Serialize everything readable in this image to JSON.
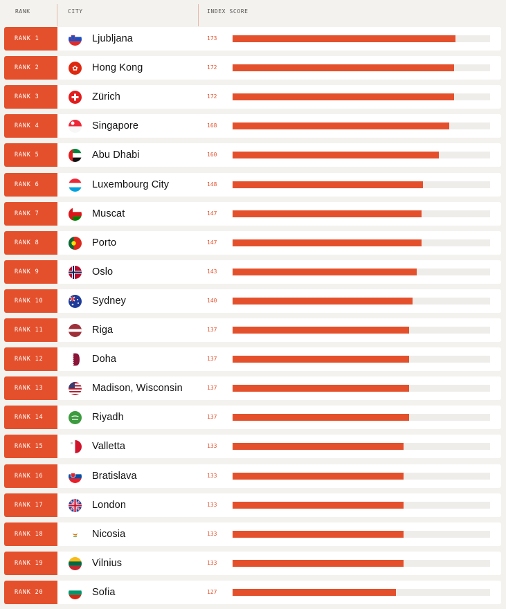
{
  "header": {
    "rank": "RANK",
    "city": "CITY",
    "score": "INDEX SCORE"
  },
  "colors": {
    "accent": "#e4502c",
    "track": "#efedea",
    "background": "#f4f2ee"
  },
  "chart_data": {
    "type": "bar",
    "title": "",
    "xlabel": "INDEX SCORE",
    "xlim": [
      0,
      200
    ],
    "categories": [
      "Ljubljana",
      "Hong Kong",
      "Zürich",
      "Singapore",
      "Abu Dhabi",
      "Luxembourg City",
      "Muscat",
      "Porto",
      "Oslo",
      "Sydney",
      "Riga",
      "Doha",
      "Madison, Wisconsin",
      "Riyadh",
      "Valletta",
      "Bratislava",
      "London",
      "Nicosia",
      "Vilnius",
      "Sofia"
    ],
    "values": [
      173,
      172,
      172,
      168,
      160,
      148,
      147,
      147,
      143,
      140,
      137,
      137,
      137,
      137,
      133,
      133,
      133,
      133,
      133,
      127
    ],
    "rows": [
      {
        "rank": "RANK 1",
        "city": "Ljubljana",
        "score": "173",
        "flag": "slovenia-flag-icon"
      },
      {
        "rank": "RANK 2",
        "city": "Hong Kong",
        "score": "172",
        "flag": "hong-kong-flag-icon"
      },
      {
        "rank": "RANK 3",
        "city": "Zürich",
        "score": "172",
        "flag": "switzerland-flag-icon"
      },
      {
        "rank": "RANK 4",
        "city": "Singapore",
        "score": "168",
        "flag": "singapore-flag-icon"
      },
      {
        "rank": "RANK 5",
        "city": "Abu Dhabi",
        "score": "160",
        "flag": "uae-flag-icon"
      },
      {
        "rank": "RANK 6",
        "city": "Luxembourg City",
        "score": "148",
        "flag": "luxembourg-flag-icon"
      },
      {
        "rank": "RANK 7",
        "city": "Muscat",
        "score": "147",
        "flag": "oman-flag-icon"
      },
      {
        "rank": "RANK 8",
        "city": "Porto",
        "score": "147",
        "flag": "portugal-flag-icon"
      },
      {
        "rank": "RANK 9",
        "city": "Oslo",
        "score": "143",
        "flag": "norway-flag-icon"
      },
      {
        "rank": "RANK 10",
        "city": "Sydney",
        "score": "140",
        "flag": "australia-flag-icon"
      },
      {
        "rank": "RANK 11",
        "city": "Riga",
        "score": "137",
        "flag": "latvia-flag-icon"
      },
      {
        "rank": "RANK 12",
        "city": "Doha",
        "score": "137",
        "flag": "qatar-flag-icon"
      },
      {
        "rank": "RANK 13",
        "city": "Madison, Wisconsin",
        "score": "137",
        "flag": "usa-flag-icon"
      },
      {
        "rank": "RANK 14",
        "city": "Riyadh",
        "score": "137",
        "flag": "saudi-arabia-flag-icon"
      },
      {
        "rank": "RANK 15",
        "city": "Valletta",
        "score": "133",
        "flag": "malta-flag-icon"
      },
      {
        "rank": "RANK 16",
        "city": "Bratislava",
        "score": "133",
        "flag": "slovakia-flag-icon"
      },
      {
        "rank": "RANK 17",
        "city": "London",
        "score": "133",
        "flag": "uk-flag-icon"
      },
      {
        "rank": "RANK 18",
        "city": "Nicosia",
        "score": "133",
        "flag": "cyprus-flag-icon"
      },
      {
        "rank": "RANK 19",
        "city": "Vilnius",
        "score": "133",
        "flag": "lithuania-flag-icon"
      },
      {
        "rank": "RANK 20",
        "city": "Sofia",
        "score": "127",
        "flag": "bulgaria-flag-icon"
      }
    ]
  }
}
